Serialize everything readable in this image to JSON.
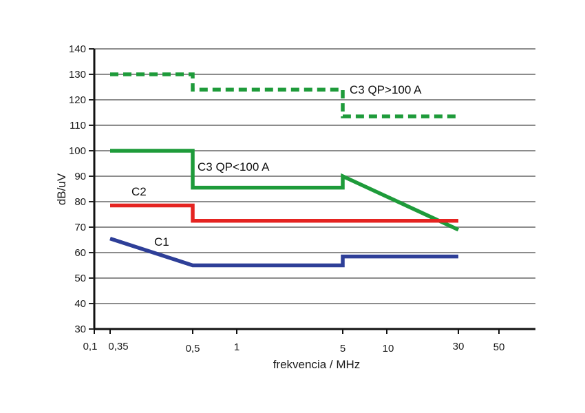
{
  "chart_data": {
    "type": "line",
    "title": "",
    "xlabel": "frekvencia / MHz",
    "ylabel": "dB/uV",
    "ylim": [
      30,
      140
    ],
    "yticks": [
      30,
      40,
      50,
      60,
      70,
      80,
      90,
      100,
      110,
      120,
      130,
      140
    ],
    "ytick_labels": [
      "30",
      "40",
      "50",
      "60",
      "70",
      "80",
      "90",
      "100",
      "110",
      "120",
      "130",
      "140"
    ],
    "xticks": [
      0.1,
      0.35,
      0.5,
      1,
      5,
      10,
      30,
      50
    ],
    "xtick_labels": [
      "0,1",
      "0,35",
      "0,5",
      "1",
      "5",
      "10",
      "30",
      "50"
    ],
    "xscale": "custom (non-uniform tick spacing)",
    "grid": "horizontal",
    "legend": "none (inline annotations)",
    "series": [
      {
        "name": "C3 QP>100 A",
        "label": "C3  QP>100 A",
        "color": "#1e9b3a",
        "style": "dashed",
        "points": [
          [
            0.35,
            130
          ],
          [
            0.5,
            130
          ],
          [
            0.5,
            124
          ],
          [
            5,
            124
          ],
          [
            5,
            113.5
          ],
          [
            30,
            113.5
          ]
        ]
      },
      {
        "name": "C3 QP<100 A",
        "label": "C3  QP<100 A",
        "color": "#1e9b3a",
        "style": "solid",
        "points": [
          [
            0.35,
            100
          ],
          [
            0.5,
            100
          ],
          [
            0.5,
            85.5
          ],
          [
            5,
            85.5
          ],
          [
            5,
            90
          ],
          [
            30,
            69
          ]
        ]
      },
      {
        "name": "C2",
        "label": "C2",
        "color": "#e52421",
        "style": "solid",
        "points": [
          [
            0.35,
            78.5
          ],
          [
            0.5,
            78.5
          ],
          [
            0.5,
            72.5
          ],
          [
            30,
            72.5
          ]
        ]
      },
      {
        "name": "C1",
        "label": "C1",
        "color": "#2e3f98",
        "style": "solid",
        "points": [
          [
            0.35,
            65.5
          ],
          [
            0.5,
            55
          ],
          [
            5,
            55
          ],
          [
            5,
            58.5
          ],
          [
            30,
            58.5
          ]
        ]
      }
    ]
  }
}
